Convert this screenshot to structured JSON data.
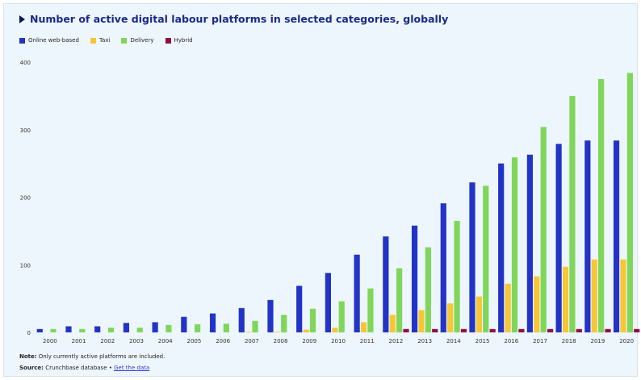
{
  "title": "Number of active digital labour platforms in selected categories, globally",
  "legend": [
    {
      "name": "Online web-based",
      "color": "#2233c6",
      "icon": "square-swatch"
    },
    {
      "name": "Taxi",
      "color": "#f7c634",
      "icon": "square-swatch"
    },
    {
      "name": "Delivery",
      "color": "#7fd65a",
      "icon": "square-swatch"
    },
    {
      "name": "Hybrid",
      "color": "#8f0f45",
      "icon": "square-swatch"
    }
  ],
  "chart_data": {
    "type": "bar",
    "categories": [
      "2000",
      "2001",
      "2002",
      "2003",
      "2004",
      "2005",
      "2006",
      "2007",
      "2008",
      "2009",
      "2010",
      "2011",
      "2012",
      "2013",
      "2014",
      "2015",
      "2016",
      "2017",
      "2018",
      "2019",
      "2020"
    ],
    "series": [
      {
        "name": "Online web-based",
        "color": "#2233c6",
        "values": [
          5,
          9,
          9,
          14,
          15,
          23,
          28,
          36,
          48,
          69,
          88,
          115,
          142,
          158,
          191,
          222,
          250,
          263,
          279,
          284,
          284
        ]
      },
      {
        "name": "Taxi",
        "color": "#f7c634",
        "values": [
          0,
          0,
          0,
          0,
          0,
          0,
          0,
          1,
          1,
          4,
          7,
          15,
          26,
          33,
          43,
          53,
          72,
          83,
          97,
          108,
          108
        ]
      },
      {
        "name": "Delivery",
        "color": "#7fd65a",
        "values": [
          5,
          5,
          7,
          7,
          11,
          12,
          13,
          17,
          26,
          35,
          46,
          65,
          95,
          126,
          165,
          217,
          259,
          304,
          350,
          375,
          384
        ]
      },
      {
        "name": "Hybrid",
        "color": "#8f0f45",
        "values": [
          0,
          0,
          0,
          0,
          0,
          0,
          0,
          0,
          0,
          0,
          0,
          0,
          5,
          5,
          5,
          5,
          5,
          5,
          5,
          5,
          5
        ]
      }
    ],
    "ylim": [
      0,
      400
    ],
    "yticks": [
      0,
      100,
      200,
      300,
      400
    ],
    "xlabel": "",
    "ylabel": "",
    "grid": false,
    "legend_position": "top-left"
  },
  "footer": {
    "note_label": "Note:",
    "note_text": "Only currently active platforms are included.",
    "source_label": "Source:",
    "source_text": "Crunchbase database •",
    "link_text": "Get the data"
  }
}
